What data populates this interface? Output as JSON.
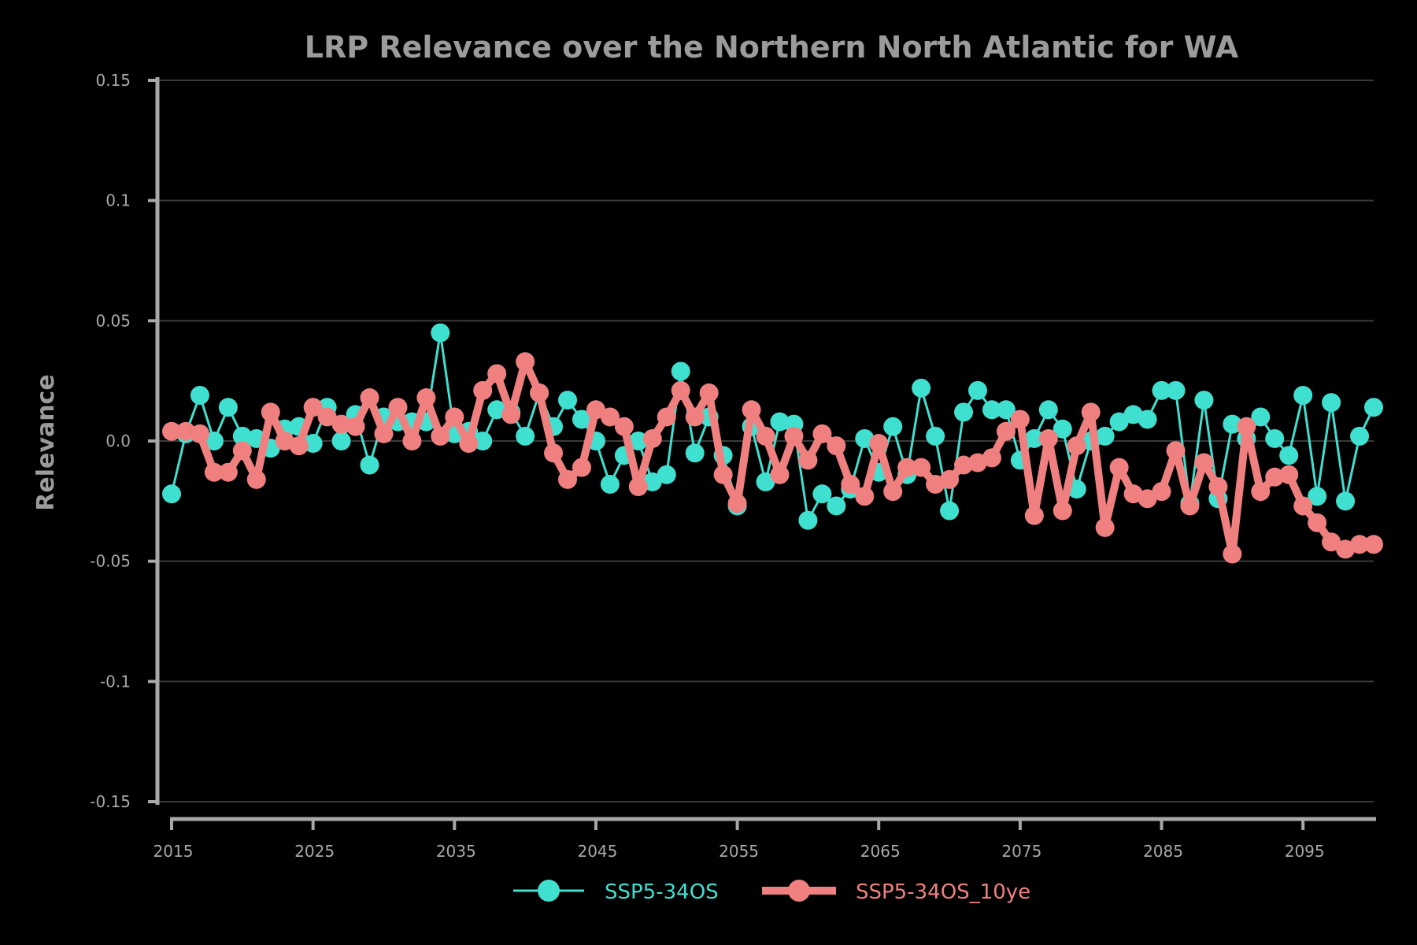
{
  "colors": {
    "background": "#000000",
    "axis": "#a8a8a8",
    "grid": "#3a3a3a",
    "text": "#9b9b9b"
  },
  "chart_data": {
    "type": "line",
    "title": "LRP Relevance over the Northern North Atlantic for WA",
    "ylabel": "Relevance",
    "xlabel": "",
    "xlim": [
      2015,
      2100
    ],
    "ylim": [
      -0.15,
      0.15
    ],
    "grid": true,
    "legend_position": "bottom-center",
    "x_ticks": [
      2015,
      2025,
      2035,
      2045,
      2055,
      2065,
      2075,
      2085,
      2095
    ],
    "x_tick_labels": [
      "2015",
      "2025",
      "2035",
      "2045",
      "2055",
      "2065",
      "2075",
      "2085",
      "2095"
    ],
    "y_ticks": [
      -0.15,
      -0.1,
      -0.05,
      0.0,
      0.05,
      0.1,
      0.15
    ],
    "y_tick_labels": [
      "-0.15",
      "-0.1",
      "-0.05",
      "0.0",
      "0.05",
      "0.1",
      "0.15"
    ],
    "x": [
      2015,
      2016,
      2017,
      2018,
      2019,
      2020,
      2021,
      2022,
      2023,
      2024,
      2025,
      2026,
      2027,
      2028,
      2029,
      2030,
      2031,
      2032,
      2033,
      2034,
      2035,
      2036,
      2037,
      2038,
      2039,
      2040,
      2041,
      2042,
      2043,
      2044,
      2045,
      2046,
      2047,
      2048,
      2049,
      2050,
      2051,
      2052,
      2053,
      2054,
      2055,
      2056,
      2057,
      2058,
      2059,
      2060,
      2061,
      2062,
      2063,
      2064,
      2065,
      2066,
      2067,
      2068,
      2069,
      2070,
      2071,
      2072,
      2073,
      2074,
      2075,
      2076,
      2077,
      2078,
      2079,
      2080,
      2081,
      2082,
      2083,
      2084,
      2085,
      2086,
      2087,
      2088,
      2089,
      2090,
      2091,
      2092,
      2093,
      2094,
      2095,
      2096,
      2097,
      2098,
      2099,
      2100
    ],
    "series": [
      {
        "name": "SSP5-34OS",
        "color": "#40e0d0",
        "line_width": "thin",
        "values": [
          -0.022,
          0.003,
          0.019,
          0.0,
          0.014,
          0.002,
          0.001,
          -0.003,
          0.005,
          0.006,
          -0.001,
          0.014,
          0.0,
          0.011,
          -0.01,
          0.01,
          0.008,
          0.008,
          0.008,
          0.045,
          0.003,
          0.004,
          0.0,
          0.013,
          0.012,
          0.002,
          0.02,
          0.006,
          0.017,
          0.009,
          0.0,
          -0.018,
          -0.006,
          0.0,
          -0.017,
          -0.014,
          0.029,
          -0.005,
          0.01,
          -0.006,
          -0.027,
          0.006,
          -0.017,
          0.008,
          0.007,
          -0.033,
          -0.022,
          -0.027,
          -0.02,
          0.001,
          -0.013,
          0.006,
          -0.014,
          0.022,
          0.002,
          -0.029,
          0.012,
          0.021,
          0.013,
          0.013,
          -0.008,
          0.001,
          0.013,
          0.005,
          -0.02,
          0.0,
          0.002,
          0.008,
          0.011,
          0.009,
          0.021,
          0.021,
          -0.026,
          0.017,
          -0.024,
          0.007,
          0.001,
          0.01,
          0.001,
          -0.006,
          0.019,
          -0.023,
          0.016,
          -0.025,
          0.002,
          0.014
        ]
      },
      {
        "name": "SSP5-34OS_10ye",
        "color": "#f08080",
        "line_width": "thick",
        "values": [
          0.004,
          0.004,
          0.003,
          -0.013,
          -0.013,
          -0.004,
          -0.016,
          0.012,
          0.0,
          -0.002,
          0.014,
          0.01,
          0.007,
          0.006,
          0.018,
          0.003,
          0.014,
          0.0,
          0.018,
          0.002,
          0.01,
          -0.001,
          0.021,
          0.028,
          0.011,
          0.033,
          0.02,
          -0.005,
          -0.016,
          -0.011,
          0.013,
          0.01,
          0.006,
          -0.019,
          0.001,
          0.01,
          0.021,
          0.01,
          0.02,
          -0.014,
          -0.026,
          0.013,
          0.002,
          -0.014,
          0.002,
          -0.008,
          0.003,
          -0.002,
          -0.018,
          -0.023,
          -0.001,
          -0.021,
          -0.011,
          -0.011,
          -0.018,
          -0.016,
          -0.01,
          -0.009,
          -0.007,
          0.004,
          0.009,
          -0.031,
          0.001,
          -0.029,
          -0.002,
          0.012,
          -0.036,
          -0.011,
          -0.022,
          -0.024,
          -0.021,
          -0.004,
          -0.027,
          -0.009,
          -0.019,
          -0.047,
          0.006,
          -0.021,
          -0.015,
          -0.014,
          -0.027,
          -0.034,
          -0.042,
          -0.045,
          -0.043,
          -0.043
        ]
      }
    ]
  }
}
